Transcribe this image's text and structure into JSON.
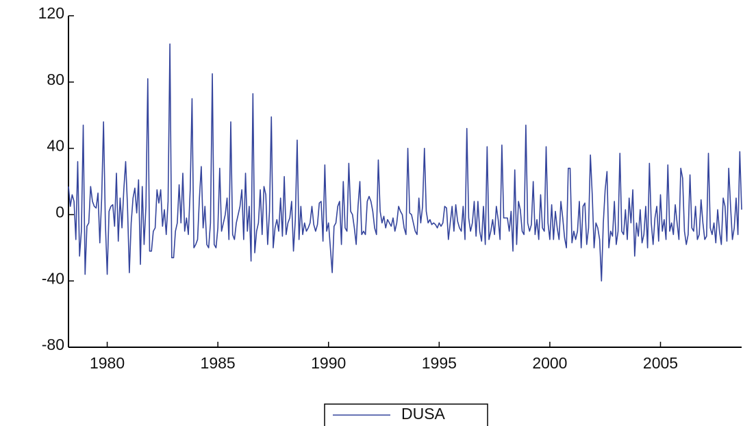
{
  "chart_data": {
    "type": "line",
    "categories": [
      null,
      null,
      null,
      null,
      null,
      null,
      null,
      null,
      null,
      null,
      null,
      null,
      null,
      null,
      null,
      null,
      null,
      null,
      null,
      null,
      null,
      "1980",
      null,
      null,
      null,
      null,
      null,
      null,
      null,
      null,
      null,
      null,
      null,
      null,
      null,
      null,
      null,
      null,
      null,
      null,
      null,
      null,
      null,
      null,
      null,
      null,
      null,
      null,
      null,
      null,
      null,
      null,
      null,
      null,
      null,
      null,
      null,
      null,
      null,
      null,
      null,
      null,
      null,
      null,
      null,
      null,
      null,
      null,
      null,
      null,
      null,
      null,
      null,
      null,
      null,
      null,
      null,
      null,
      null,
      null,
      null,
      "1985",
      null,
      null,
      null,
      null,
      null,
      null,
      null,
      null,
      null,
      null,
      null,
      null,
      null,
      null,
      null,
      null,
      null,
      null,
      null,
      null,
      null,
      null,
      null,
      null,
      null,
      null,
      null,
      null,
      null,
      null,
      null,
      null,
      null,
      null,
      null,
      null,
      null,
      null,
      null,
      null,
      null,
      null,
      null,
      null,
      null,
      null,
      null,
      null,
      null,
      null,
      null,
      null,
      null,
      null,
      null,
      null,
      null,
      null,
      null,
      "1990",
      null,
      null,
      null,
      null,
      null,
      null,
      null,
      null,
      null,
      null,
      null,
      null,
      null,
      null,
      null,
      null,
      null,
      null,
      null,
      null,
      null,
      null,
      null,
      null,
      null,
      null,
      null,
      null,
      null,
      null,
      null,
      null,
      null,
      null,
      null,
      null,
      null,
      null,
      null,
      null,
      null,
      null,
      null,
      null,
      null,
      null,
      null,
      null,
      null,
      null,
      null,
      null,
      null,
      null,
      null,
      null,
      null,
      null,
      null,
      "1995",
      null,
      null,
      null,
      null,
      null,
      null,
      null,
      null,
      null,
      null,
      null,
      null,
      null,
      null,
      null,
      null,
      null,
      null,
      null,
      null,
      null,
      null,
      null,
      null,
      null,
      null,
      null,
      null,
      null,
      null,
      null,
      null,
      null,
      null,
      null,
      null,
      null,
      null,
      null,
      null,
      null,
      null,
      null,
      null,
      null,
      null,
      null,
      null,
      null,
      null,
      null,
      null,
      null,
      null,
      null,
      null,
      null,
      null,
      null,
      "2000",
      null,
      null,
      null,
      null,
      null,
      null,
      null,
      null,
      null,
      null,
      null,
      null,
      null,
      null,
      null,
      null,
      null,
      null,
      null,
      null,
      null,
      null,
      null,
      null,
      null,
      null,
      null,
      null,
      null,
      null,
      null,
      null,
      null,
      null,
      null,
      null,
      null,
      null,
      null,
      null,
      null,
      null,
      null,
      null,
      null,
      null,
      null,
      null,
      null,
      null,
      null,
      null,
      null,
      null,
      null,
      null,
      null,
      null,
      null,
      "2005",
      null,
      null,
      null,
      null,
      null,
      null,
      null,
      null,
      null,
      null,
      null,
      null,
      null,
      null,
      null,
      null,
      null,
      null,
      null,
      null,
      null,
      null,
      null,
      null,
      null,
      null,
      null,
      null,
      null,
      null,
      null,
      null,
      null,
      null,
      null,
      null,
      null,
      null,
      null,
      null,
      null,
      null,
      null,
      null
    ],
    "series": [
      {
        "name": "DUSA",
        "color": "#34449c",
        "values": [
          17,
          5,
          12,
          8,
          -15,
          32,
          -25,
          -10,
          54,
          -36,
          -7,
          -5,
          17,
          8,
          5,
          4,
          13,
          -17,
          10,
          56,
          -5,
          -36,
          2,
          5,
          6,
          -7,
          25,
          -16,
          10,
          -8,
          15,
          32,
          5,
          -35,
          -5,
          10,
          16,
          1,
          21,
          -30,
          17,
          -18,
          5,
          82,
          -22,
          -22,
          -10,
          -8,
          15,
          7,
          15,
          -7,
          3,
          -12,
          8,
          103,
          -26,
          -26,
          -10,
          -5,
          18,
          -5,
          25,
          -10,
          -2,
          -12,
          15,
          70,
          -20,
          -18,
          -15,
          10,
          29,
          -8,
          5,
          -18,
          -20,
          -5,
          85,
          -18,
          -20,
          -8,
          28,
          -10,
          -5,
          0,
          10,
          -15,
          56,
          -12,
          -15,
          -5,
          0,
          5,
          15,
          -15,
          25,
          -10,
          5,
          -28,
          73,
          -23,
          -10,
          -5,
          15,
          -12,
          17,
          12,
          -18,
          2,
          59,
          -20,
          -8,
          -3,
          -10,
          10,
          -13,
          23,
          -12,
          -5,
          -2,
          8,
          -22,
          -3,
          45,
          -15,
          5,
          -12,
          -5,
          -10,
          -8,
          -5,
          5,
          -6,
          -10,
          -6,
          7,
          8,
          -16,
          30,
          -10,
          -5,
          -20,
          -35,
          -7,
          -5,
          5,
          8,
          -18,
          20,
          -8,
          -10,
          31,
          2,
          0,
          -8,
          -18,
          5,
          20,
          -12,
          -10,
          -12,
          8,
          11,
          8,
          2,
          -8,
          -12,
          33,
          2,
          -5,
          -1,
          -8,
          -3,
          -5,
          -7,
          -2,
          -10,
          -5,
          5,
          2,
          0,
          -8,
          -12,
          40,
          1,
          0,
          -5,
          -10,
          -12,
          10,
          -5,
          5,
          40,
          2,
          -5,
          -3,
          -6,
          -5,
          -6,
          -8,
          -5,
          -7,
          -5,
          5,
          4,
          -15,
          -5,
          5,
          -10,
          6,
          -4,
          -8,
          -10,
          5,
          -15,
          52,
          -2,
          -10,
          -5,
          8,
          -13,
          8,
          -10,
          -16,
          5,
          -18,
          41,
          -15,
          -10,
          -3,
          -12,
          5,
          -3,
          -15,
          42,
          -2,
          -2,
          -2,
          -10,
          2,
          -22,
          27,
          -18,
          8,
          3,
          -10,
          -12,
          54,
          -5,
          -10,
          -6,
          20,
          -12,
          -3,
          -15,
          12,
          -8,
          -10,
          41,
          -5,
          -15,
          6,
          -15,
          2,
          -8,
          -15,
          8,
          -2,
          -14,
          -20,
          28,
          28,
          -17,
          -10,
          -15,
          -10,
          8,
          -20,
          5,
          7,
          -18,
          -8,
          36,
          12,
          -20,
          -5,
          -8,
          -15,
          -40,
          -5,
          15,
          26,
          -20,
          -10,
          -13,
          8,
          -18,
          -10,
          37,
          -10,
          -12,
          3,
          -15,
          10,
          -5,
          15,
          -25,
          -5,
          -13,
          3,
          -17,
          -12,
          5,
          -20,
          31,
          -5,
          -18,
          -2,
          5,
          -16,
          12,
          -10,
          -3,
          -15,
          30,
          -10,
          -5,
          -12,
          6,
          -5,
          -15,
          28,
          22,
          -10,
          -18,
          -12,
          24,
          -8,
          -10,
          5,
          -15,
          -12,
          9,
          -5,
          -15,
          -13,
          37,
          -8,
          -12,
          -5,
          -17,
          3,
          -10,
          -18,
          10,
          5,
          -16,
          28,
          5,
          -15,
          -8,
          10,
          -12,
          38,
          3
        ]
      }
    ],
    "ylim": [
      -80,
      120
    ],
    "yticks": [
      -80,
      -40,
      0,
      40,
      80,
      120
    ]
  }
}
